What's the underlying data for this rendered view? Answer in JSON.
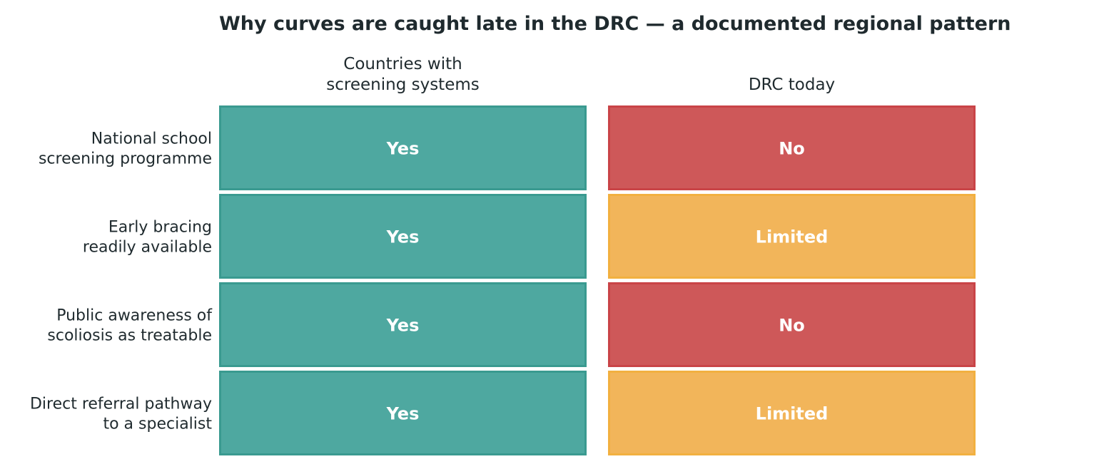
{
  "chart_data": {
    "type": "table",
    "title": "Why curves are caught late in the DRC — a documented regional pattern",
    "columns": [
      [
        "Countries with",
        "screening systems"
      ],
      [
        "DRC today"
      ]
    ],
    "rows": [
      {
        "label": [
          "National school",
          "screening programme"
        ],
        "values": [
          "Yes",
          "No"
        ]
      },
      {
        "label": [
          "Early bracing",
          "readily available"
        ],
        "values": [
          "Yes",
          "Limited"
        ]
      },
      {
        "label": [
          "Public awareness of",
          "scoliosis as treatable"
        ],
        "values": [
          "Yes",
          "No"
        ]
      },
      {
        "label": [
          "Direct referral pathway",
          "to a specialist"
        ],
        "values": [
          "Yes",
          "Limited"
        ]
      }
    ],
    "status_colors": {
      "Yes": {
        "fill": "#4ea8a0",
        "stroke": "#3a9a90"
      },
      "No": {
        "fill": "#ce5859",
        "stroke": "#c94447"
      },
      "Limited": {
        "fill": "#f2b55a",
        "stroke": "#f2b040"
      }
    }
  }
}
